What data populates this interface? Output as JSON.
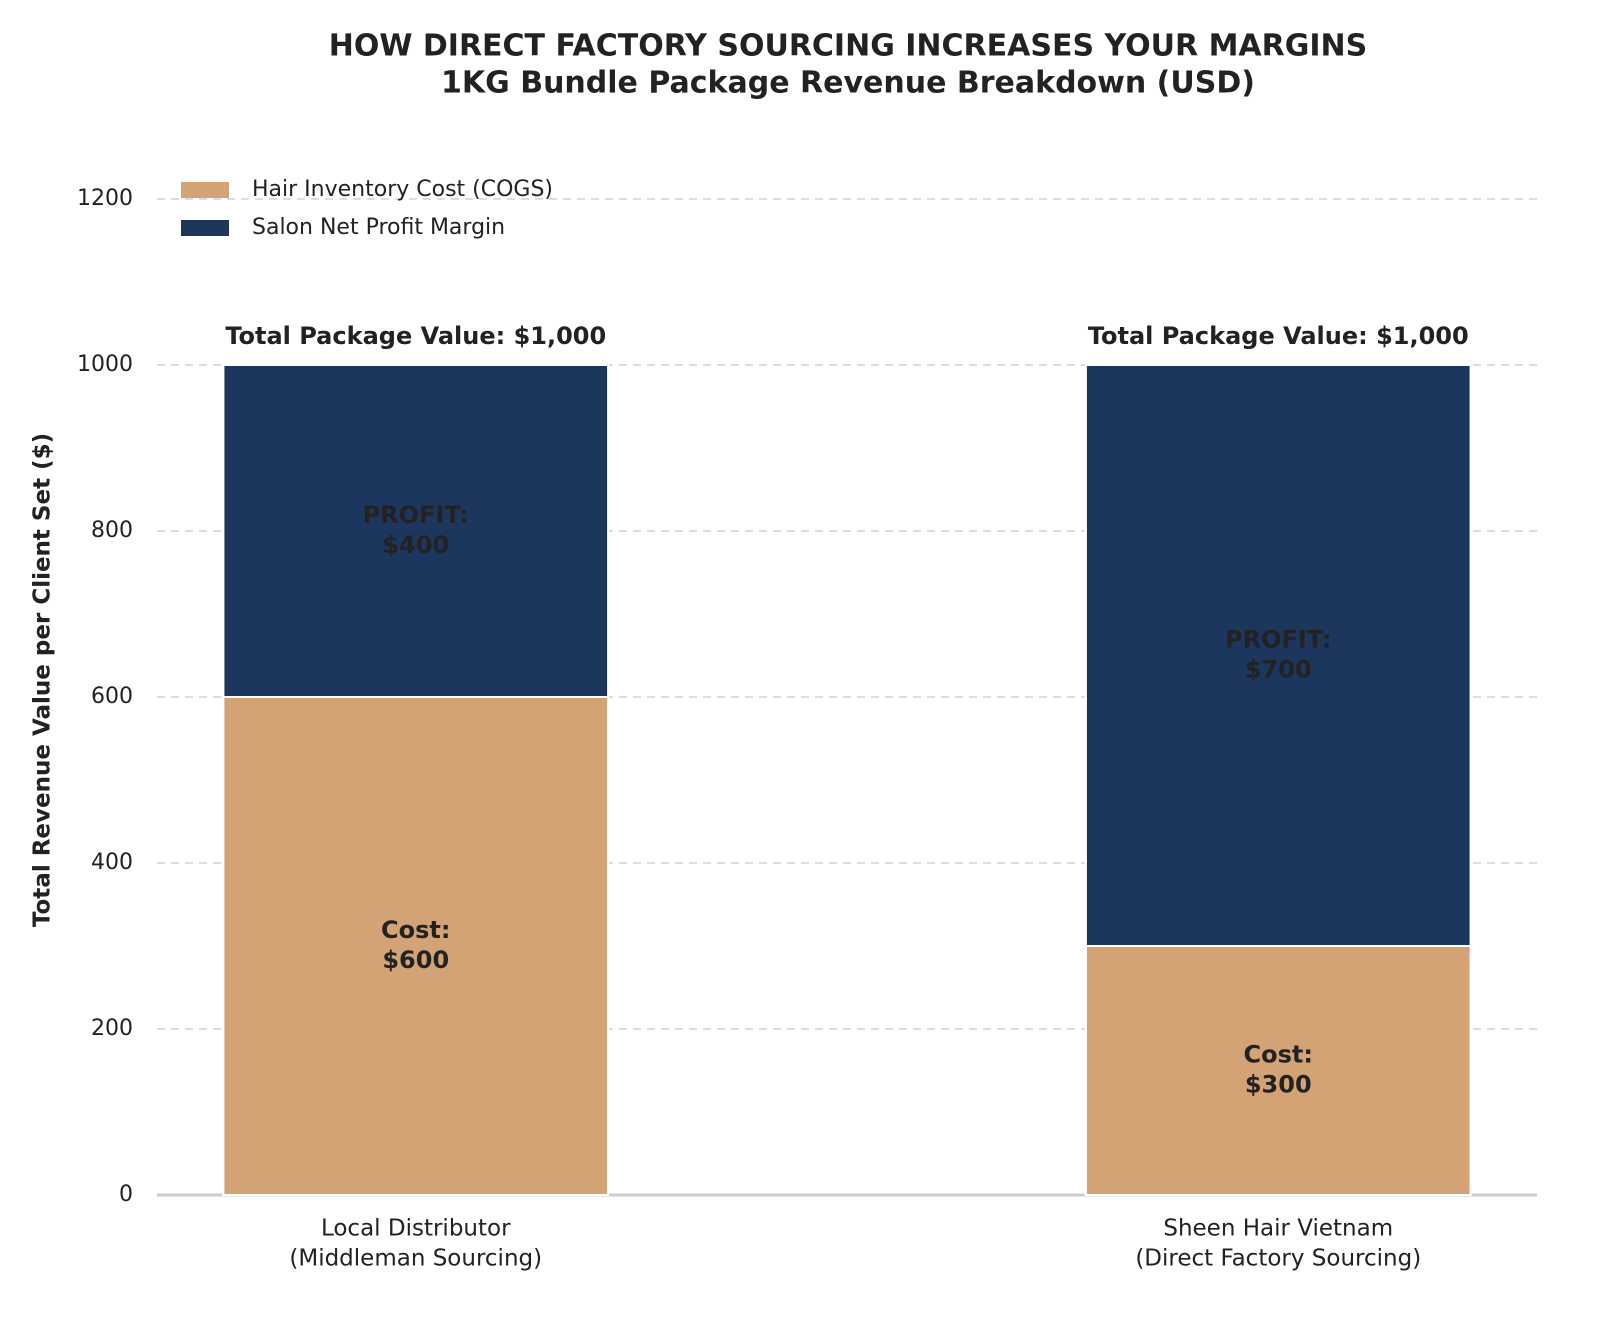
{
  "chart_data": {
    "type": "stacked_bar",
    "title": "HOW DIRECT FACTORY SOURCING INCREASES YOUR MARGINS",
    "subtitle": "1KG Bundle Package Revenue Breakdown (USD)",
    "y_label": "Total Revenue Value per Client Set ($)",
    "categories": [
      [
        "Local Distributor",
        "(Middleman Sourcing)"
      ],
      [
        "Sheen Hair Vietnam",
        "(Direct Factory Sourcing)"
      ]
    ],
    "series": [
      {
        "name": "Hair Inventory Cost (COGS)",
        "color": "#d3a375",
        "values": [
          600,
          300
        ],
        "value_labels": [
          [
            "Cost:",
            "$600"
          ],
          [
            "Cost:",
            "$300"
          ]
        ]
      },
      {
        "name": "Salon Net Profit Margin",
        "color": "#1c365e",
        "values": [
          400,
          700
        ],
        "value_labels": [
          [
            "PROFIT:",
            "$400"
          ],
          [
            "PROFIT:",
            "$700"
          ]
        ]
      }
    ],
    "annotations": [
      "Total Package Value: $1,000",
      "Total Package Value: $1,000"
    ],
    "ylim": [
      0,
      1200
    ],
    "yticks": [
      0,
      200,
      400,
      600,
      800,
      1000,
      1200
    ],
    "grid": true,
    "legend": "upper left"
  }
}
